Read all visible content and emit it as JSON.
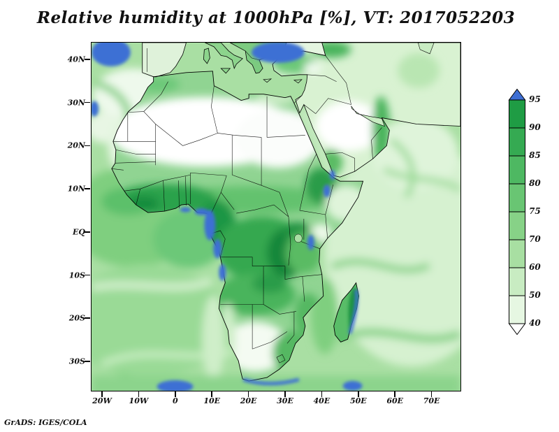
{
  "title": "Relative humidity at 1000hPa [%], VT: 2017052203",
  "credit": "GrADS: IGES/COLA",
  "axes": {
    "y_ticks": [
      "40N",
      "30N",
      "20N",
      "10N",
      "EQ",
      "10S",
      "20S",
      "30S"
    ],
    "x_ticks": [
      "20W",
      "10W",
      "0",
      "10E",
      "20E",
      "30E",
      "40E",
      "50E",
      "60E",
      "70E"
    ]
  },
  "colorbar": {
    "labels": [
      "95",
      "90",
      "85",
      "80",
      "75",
      "70",
      "60",
      "50",
      "40"
    ],
    "colors_top_to_bottom": [
      "#3e6fd4",
      "#1f9c44",
      "#35aa52",
      "#4eb862",
      "#69c573",
      "#87d287",
      "#a8dfa2",
      "#c8ecc2",
      "#e6f7e2",
      "#ffffff"
    ]
  },
  "chart_data": {
    "type": "heatmap",
    "title": "Relative humidity at 1000hPa [%], VT: 2017052203",
    "variable": "relative humidity",
    "level_hPa": 1000,
    "units": "%",
    "valid_time": "2017052203",
    "x": {
      "label": "longitude",
      "tick_labels": [
        "20W",
        "10W",
        "0",
        "10E",
        "20E",
        "30E",
        "40E",
        "50E",
        "60E",
        "70E"
      ],
      "range_deg_east": [
        -23,
        78
      ]
    },
    "y": {
      "label": "latitude",
      "tick_labels": [
        "40N",
        "30N",
        "20N",
        "10N",
        "EQ",
        "10S",
        "20S",
        "30S"
      ],
      "range_deg_north": [
        -37,
        44
      ]
    },
    "contour_levels": [
      40,
      50,
      60,
      70,
      75,
      80,
      85,
      90,
      95
    ],
    "palette_low_to_high": [
      "#ffffff",
      "#e6f7e2",
      "#c8ecc2",
      "#a8dfa2",
      "#87d287",
      "#69c573",
      "#4eb862",
      "#35aa52",
      "#1f9c44",
      "#3e6fd4"
    ],
    "legend_position": "right vertical colorbar with end arrows",
    "grid": false,
    "region": "Africa, southern Europe, Middle East and surrounding oceans",
    "notes": "Filled contours: <40% white over Sahara and Kalahari; >95% blue patches along Gulf of Guinea and Congo-Angola coasts, Ethiopian highlands, east Madagascar, South African south coast, Aegean/Black Sea area and NE Atlantic corner."
  }
}
